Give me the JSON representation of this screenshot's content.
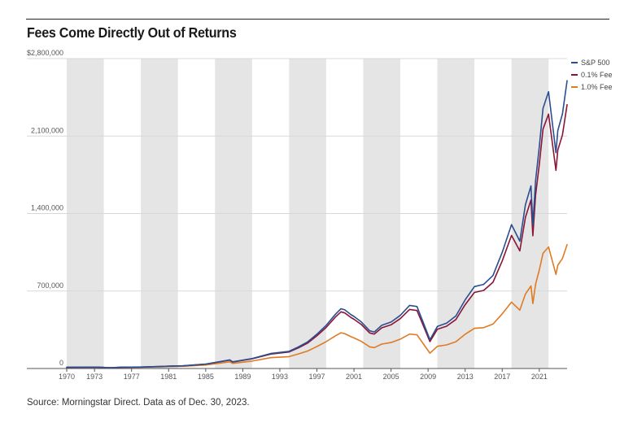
{
  "chart_data": {
    "type": "line",
    "title": "Fees Come Directly Out of Returns",
    "source": "Source: Morningstar Direct. Data as of Dec. 30, 2023.",
    "xlim": [
      1970.0,
      2024.0
    ],
    "ylim": [
      0,
      2800000
    ],
    "y_ticks": [
      {
        "value": 2800000,
        "label": "$2,800,000"
      },
      {
        "value": 2100000,
        "label": "2,100,000"
      },
      {
        "value": 1400000,
        "label": "1,400,000"
      },
      {
        "value": 700000,
        "label": "700,000"
      },
      {
        "value": 0,
        "label": "0"
      }
    ],
    "x_ticks": [
      {
        "value": 1970,
        "label": "1970"
      },
      {
        "value": 1973,
        "label": "1973"
      },
      {
        "value": 1977,
        "label": "1977"
      },
      {
        "value": 1981,
        "label": "1981"
      },
      {
        "value": 1985,
        "label": "1985"
      },
      {
        "value": 1989,
        "label": "1989"
      },
      {
        "value": 1993,
        "label": "1993"
      },
      {
        "value": 1997,
        "label": "1997"
      },
      {
        "value": 2001,
        "label": "2001"
      },
      {
        "value": 2005,
        "label": "2005"
      },
      {
        "value": 2009,
        "label": "2009"
      },
      {
        "value": 2013,
        "label": "2013"
      },
      {
        "value": 2017,
        "label": "2017"
      },
      {
        "value": 2021,
        "label": "2021"
      }
    ],
    "shaded_bands": [
      [
        1970,
        1974
      ],
      [
        1978,
        1982
      ],
      [
        1986,
        1990
      ],
      [
        1994,
        1998
      ],
      [
        2002,
        2006
      ],
      [
        2010,
        2014
      ],
      [
        2018,
        2022
      ]
    ],
    "legend_position": "top-right",
    "series": [
      {
        "name": "S&P 500",
        "color": "#2a4f8f",
        "x": [
          1970,
          1972,
          1973,
          1974.7,
          1976,
          1978,
          1980,
          1981.5,
          1982.5,
          1985,
          1987.6,
          1987.9,
          1990,
          1992,
          1994,
          1995,
          1996,
          1997,
          1998,
          1999,
          1999.6,
          2000,
          2000.7,
          2001,
          2001.8,
          2002.7,
          2003.2,
          2004,
          2005,
          2006,
          2007,
          2007.8,
          2008.5,
          2009.2,
          2010,
          2011,
          2012,
          2013,
          2014,
          2015,
          2016,
          2017,
          2018,
          2018.9,
          2019.5,
          2020.1,
          2020.3,
          2020.6,
          2021,
          2021.4,
          2022,
          2022.8,
          2023,
          2023.5,
          2024
        ],
        "values": [
          10000,
          11500,
          12500,
          7500,
          11500,
          13000,
          18000,
          23000,
          24000,
          40000,
          78000,
          60000,
          90000,
          135000,
          155000,
          195000,
          240000,
          310000,
          390000,
          490000,
          540000,
          530000,
          485000,
          470000,
          420000,
          340000,
          330000,
          390000,
          420000,
          480000,
          570000,
          560000,
          410000,
          260000,
          380000,
          410000,
          475000,
          620000,
          740000,
          760000,
          840000,
          1050000,
          1300000,
          1150000,
          1480000,
          1650000,
          1300000,
          1700000,
          2000000,
          2350000,
          2500000,
          1950000,
          2150000,
          2300000,
          2600000
        ]
      },
      {
        "name": "0.1% Fee",
        "color": "#8a1538",
        "x": [
          1970,
          1972,
          1973,
          1974.7,
          1976,
          1978,
          1980,
          1981.5,
          1982.5,
          1985,
          1987.6,
          1987.9,
          1990,
          1992,
          1994,
          1995,
          1996,
          1997,
          1998,
          1999,
          1999.6,
          2000,
          2000.7,
          2001,
          2001.8,
          2002.7,
          2003.2,
          2004,
          2005,
          2006,
          2007,
          2007.8,
          2008.5,
          2009.2,
          2010,
          2011,
          2012,
          2013,
          2014,
          2015,
          2016,
          2017,
          2018,
          2018.9,
          2019.5,
          2020.1,
          2020.3,
          2020.6,
          2021,
          2021.4,
          2022,
          2022.8,
          2023,
          2023.5,
          2024
        ],
        "values": [
          10000,
          11450,
          12400,
          7400,
          11400,
          12850,
          17750,
          22600,
          23550,
          39050,
          75900,
          58400,
          87150,
          130200,
          148900,
          186900,
          229500,
          295800,
          371400,
          465300,
          512000,
          502200,
          459200,
          444800,
          397000,
          320800,
          311200,
          367200,
          394800,
          450400,
          533900,
          524000,
          383500,
          243000,
          354800,
          382400,
          442400,
          576500,
          687300,
          705200,
          778800,
          972300,
          1202600,
          1062500,
          1366400,
          1522400,
          1199100,
          1567100,
          1841800,
          2163000,
          2297900,
          1790300,
          1973400,
          2110600,
          2383500
        ]
      },
      {
        "name": "1.0% Fee",
        "color": "#e07b24",
        "x": [
          1970,
          1972,
          1973,
          1974.7,
          1976,
          1978,
          1980,
          1981.5,
          1982.5,
          1985,
          1987.6,
          1987.9,
          1990,
          1992,
          1994,
          1995,
          1996,
          1997,
          1998,
          1999,
          1999.6,
          2000,
          2000.7,
          2001,
          2001.8,
          2002.7,
          2003.2,
          2004,
          2005,
          2006,
          2007,
          2007.8,
          2008.5,
          2009.2,
          2010,
          2011,
          2012,
          2013,
          2014,
          2015,
          2016,
          2017,
          2018,
          2018.9,
          2019.5,
          2020.1,
          2020.3,
          2020.6,
          2021,
          2021.4,
          2022,
          2022.8,
          2023,
          2023.5,
          2024
        ],
        "values": [
          10000,
          11000,
          11800,
          6900,
          10400,
          11500,
          15400,
          19300,
          19900,
          31900,
          60000,
          46100,
          67100,
          97600,
          107300,
          131700,
          158000,
          198100,
          242400,
          295700,
          322700,
          315200,
          286500,
          276500,
          244400,
          195700,
          189200,
          220500,
          234700,
          265000,
          311000,
          303900,
          220500,
          138800,
          200500,
          213000,
          242000,
          309300,
          362900,
          368700,
          401400,
          493900,
          599800,
          527000,
          673400,
          745800,
          586800,
          762200,
          889200,
          1040400,
          1098000,
          850200,
          933600,
          994600,
          1119300
        ]
      }
    ]
  }
}
